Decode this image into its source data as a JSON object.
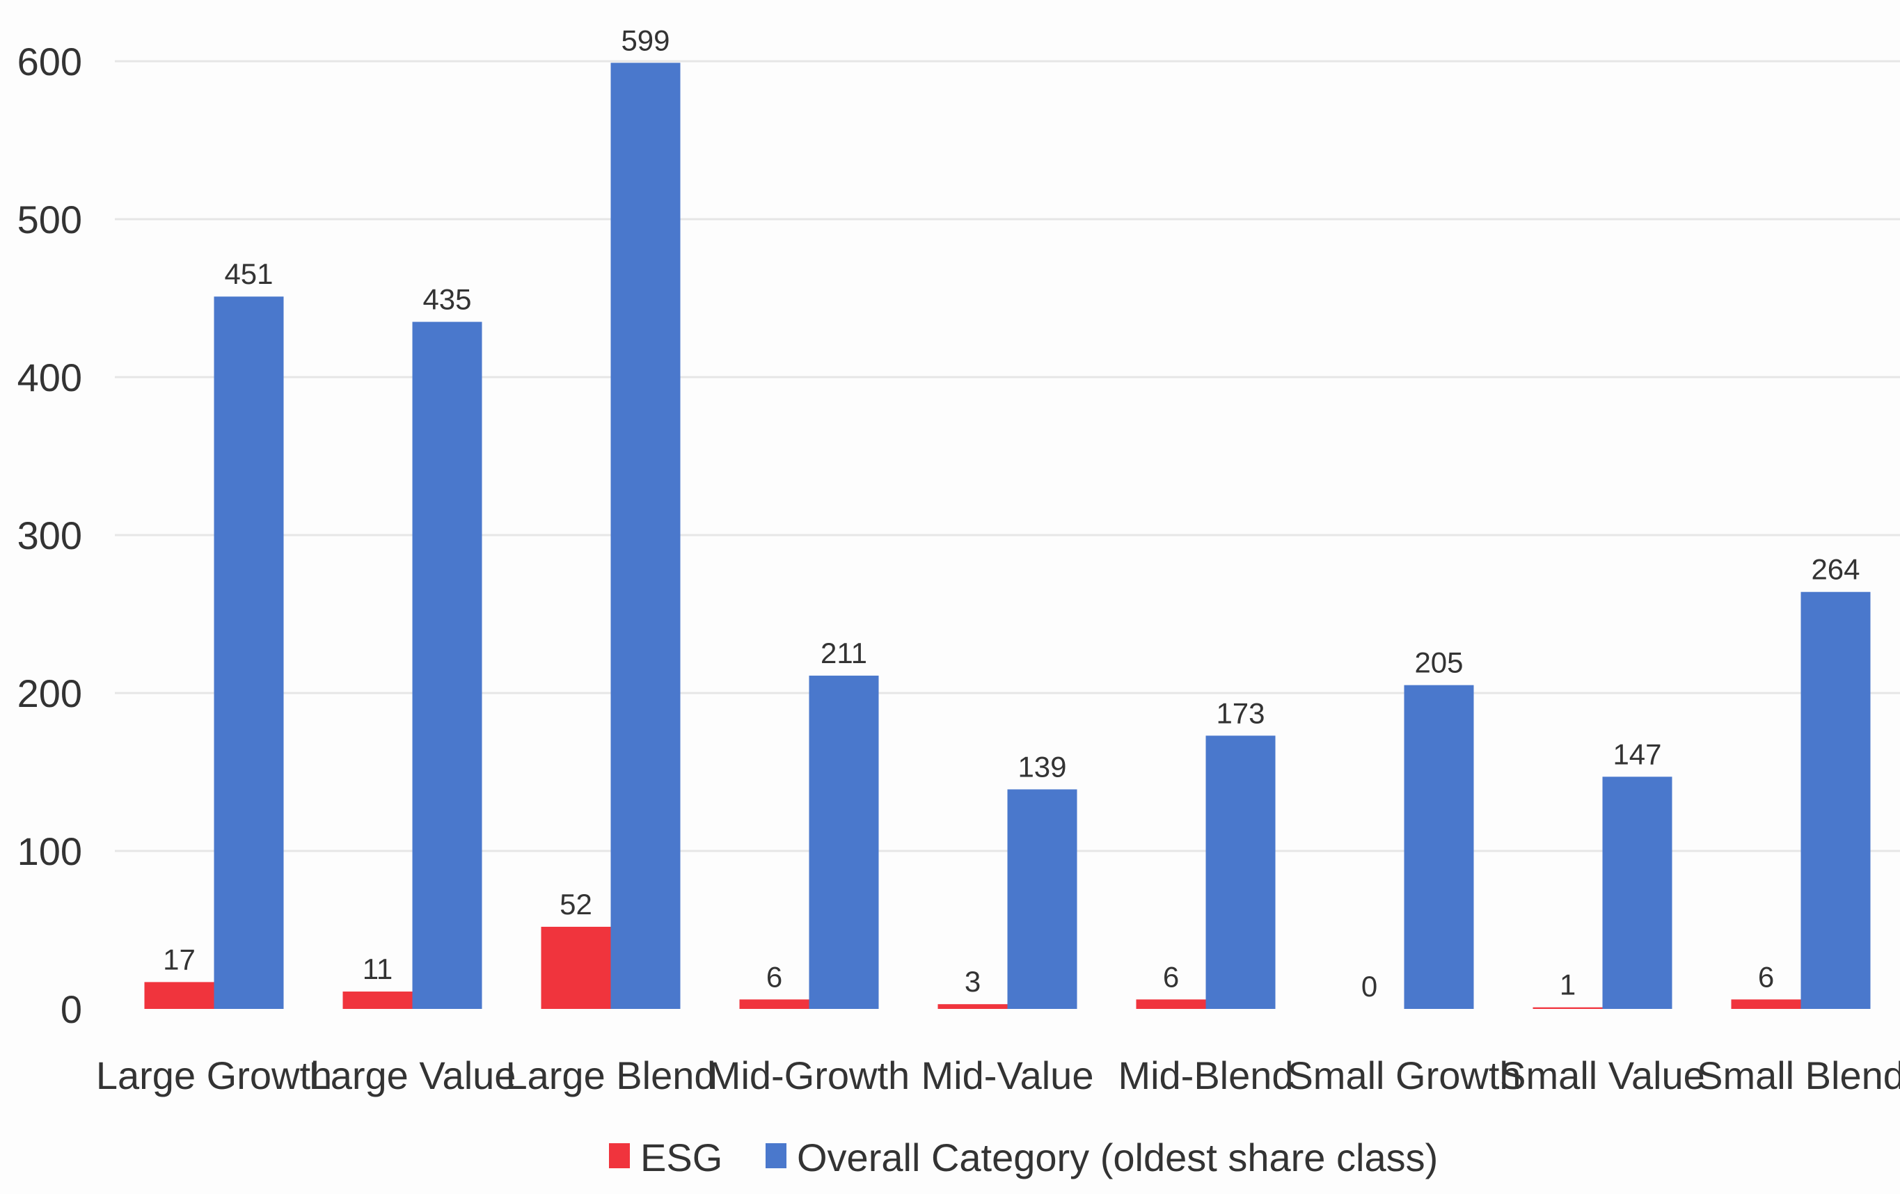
{
  "chart_data": {
    "type": "bar",
    "categories": [
      "Large Growth",
      "Large Value",
      "Large Blend",
      "Mid-Growth",
      "Mid-Value",
      "Mid-Blend",
      "Small Growth",
      "Small Value",
      "Small Blend"
    ],
    "series": [
      {
        "name": "ESG",
        "values": [
          17,
          11,
          52,
          6,
          3,
          6,
          0,
          1,
          6
        ],
        "color": "#f0343d"
      },
      {
        "name": "Overall Category (oldest share class)",
        "values": [
          451,
          435,
          599,
          211,
          139,
          173,
          205,
          147,
          264
        ],
        "color": "#4a78cc"
      }
    ],
    "title": "",
    "xlabel": "",
    "ylabel": "",
    "ylim": [
      0,
      600
    ],
    "yticks": [
      0,
      100,
      200,
      300,
      400,
      500,
      600
    ],
    "grid": true,
    "legend_position": "bottom"
  }
}
